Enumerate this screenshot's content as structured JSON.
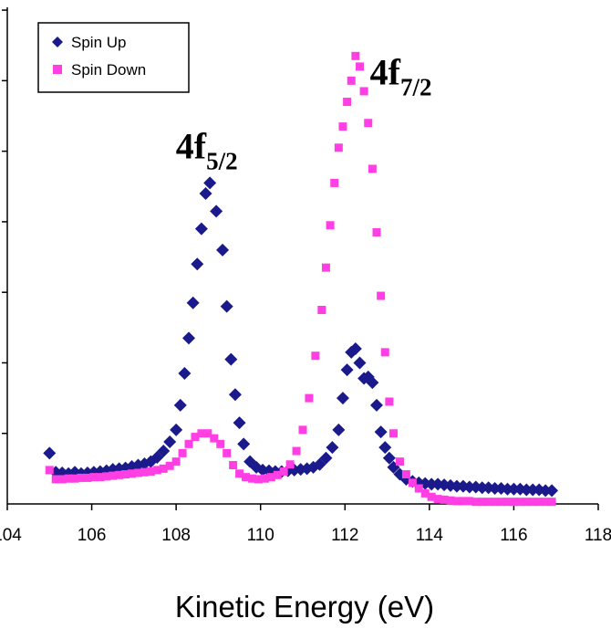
{
  "chart_data": {
    "type": "scatter",
    "title": "",
    "xlabel": "Kinetic Energy (eV)",
    "ylabel": "",
    "xlim": [
      104,
      118
    ],
    "ylim": [
      0,
      7
    ],
    "x_ticks": [
      "104",
      "106",
      "108",
      "110",
      "112",
      "114",
      "116",
      "118"
    ],
    "y_tick_count": 7,
    "y_tick_labels_shown": false,
    "grid": false,
    "legend_position": "top-left",
    "annotations": [
      {
        "base": "4f",
        "sub": "5/2",
        "x": 108.1,
        "y": 5.0
      },
      {
        "base": "4f",
        "sub": "7/2",
        "x": 112.7,
        "y": 6.05
      }
    ],
    "series": [
      {
        "name": "Spin Up",
        "marker": "diamond",
        "color": "#1a1a8c",
        "x": [
          105.0,
          105.15,
          105.3,
          105.45,
          105.6,
          105.75,
          105.9,
          106.05,
          106.2,
          106.35,
          106.5,
          106.65,
          106.8,
          106.95,
          107.1,
          107.25,
          107.4,
          107.55,
          107.7,
          107.85,
          108.0,
          108.1,
          108.2,
          108.3,
          108.4,
          108.5,
          108.6,
          108.7,
          108.8,
          108.95,
          109.1,
          109.2,
          109.3,
          109.4,
          109.5,
          109.6,
          109.75,
          109.9,
          110.05,
          110.2,
          110.35,
          110.5,
          110.65,
          110.8,
          110.95,
          111.1,
          111.25,
          111.4,
          111.55,
          111.7,
          111.85,
          111.95,
          112.05,
          112.15,
          112.25,
          112.35,
          112.45,
          112.55,
          112.65,
          112.75,
          112.85,
          112.95,
          113.05,
          113.15,
          113.3,
          113.45,
          113.6,
          113.75,
          113.9,
          114.05,
          114.2,
          114.35,
          114.5,
          114.65,
          114.8,
          114.95,
          115.1,
          115.25,
          115.4,
          115.55,
          115.7,
          115.85,
          116.0,
          116.15,
          116.3,
          116.45,
          116.6,
          116.75,
          116.9
        ],
        "values": [
          0.72,
          0.45,
          0.44,
          0.43,
          0.45,
          0.43,
          0.44,
          0.45,
          0.46,
          0.47,
          0.49,
          0.5,
          0.51,
          0.53,
          0.55,
          0.57,
          0.6,
          0.66,
          0.75,
          0.88,
          1.05,
          1.4,
          1.85,
          2.35,
          2.85,
          3.4,
          3.9,
          4.4,
          4.55,
          4.15,
          3.6,
          2.8,
          2.05,
          1.55,
          1.15,
          0.85,
          0.6,
          0.52,
          0.48,
          0.47,
          0.46,
          0.46,
          0.47,
          0.48,
          0.49,
          0.5,
          0.52,
          0.56,
          0.65,
          0.8,
          1.05,
          1.5,
          1.9,
          2.15,
          2.2,
          2.0,
          1.78,
          1.8,
          1.72,
          1.4,
          1.02,
          0.8,
          0.65,
          0.52,
          0.42,
          0.35,
          0.32,
          0.3,
          0.29,
          0.28,
          0.28,
          0.27,
          0.26,
          0.25,
          0.25,
          0.24,
          0.24,
          0.23,
          0.23,
          0.22,
          0.22,
          0.21,
          0.21,
          0.21,
          0.2,
          0.2,
          0.2,
          0.19,
          0.19
        ]
      },
      {
        "name": "Spin Down",
        "marker": "square",
        "color": "#ff3fe3",
        "x": [
          105.0,
          105.15,
          105.3,
          105.45,
          105.6,
          105.75,
          105.9,
          106.05,
          106.2,
          106.35,
          106.5,
          106.65,
          106.8,
          106.95,
          107.1,
          107.25,
          107.4,
          107.55,
          107.7,
          107.85,
          108.0,
          108.15,
          108.3,
          108.45,
          108.6,
          108.75,
          108.9,
          109.05,
          109.2,
          109.35,
          109.5,
          109.65,
          109.8,
          109.95,
          110.1,
          110.25,
          110.4,
          110.55,
          110.7,
          110.85,
          111.0,
          111.15,
          111.3,
          111.45,
          111.55,
          111.65,
          111.75,
          111.85,
          111.95,
          112.05,
          112.15,
          112.25,
          112.35,
          112.45,
          112.55,
          112.65,
          112.75,
          112.85,
          112.95,
          113.05,
          113.15,
          113.3,
          113.45,
          113.6,
          113.75,
          113.9,
          114.05,
          114.2,
          114.35,
          114.5,
          114.65,
          114.8,
          114.95,
          115.1,
          115.25,
          115.4,
          115.55,
          115.7,
          115.85,
          116.0,
          116.15,
          116.3,
          116.45,
          116.6,
          116.75,
          116.9
        ],
        "values": [
          0.48,
          0.35,
          0.35,
          0.36,
          0.36,
          0.37,
          0.37,
          0.38,
          0.38,
          0.39,
          0.4,
          0.41,
          0.42,
          0.43,
          0.44,
          0.45,
          0.46,
          0.48,
          0.5,
          0.54,
          0.6,
          0.72,
          0.85,
          0.95,
          1.0,
          1.0,
          0.93,
          0.85,
          0.72,
          0.55,
          0.43,
          0.38,
          0.36,
          0.35,
          0.36,
          0.38,
          0.41,
          0.46,
          0.56,
          0.75,
          1.05,
          1.5,
          2.1,
          2.75,
          3.35,
          3.95,
          4.55,
          5.05,
          5.35,
          5.7,
          6.0,
          6.35,
          6.2,
          5.85,
          5.4,
          4.75,
          3.85,
          2.95,
          2.15,
          1.45,
          1.0,
          0.6,
          0.42,
          0.3,
          0.22,
          0.15,
          0.1,
          0.07,
          0.06,
          0.05,
          0.04,
          0.04,
          0.04,
          0.03,
          0.03,
          0.03,
          0.03,
          0.03,
          0.03,
          0.03,
          0.03,
          0.03,
          0.03,
          0.03,
          0.03,
          0.03
        ]
      }
    ]
  }
}
